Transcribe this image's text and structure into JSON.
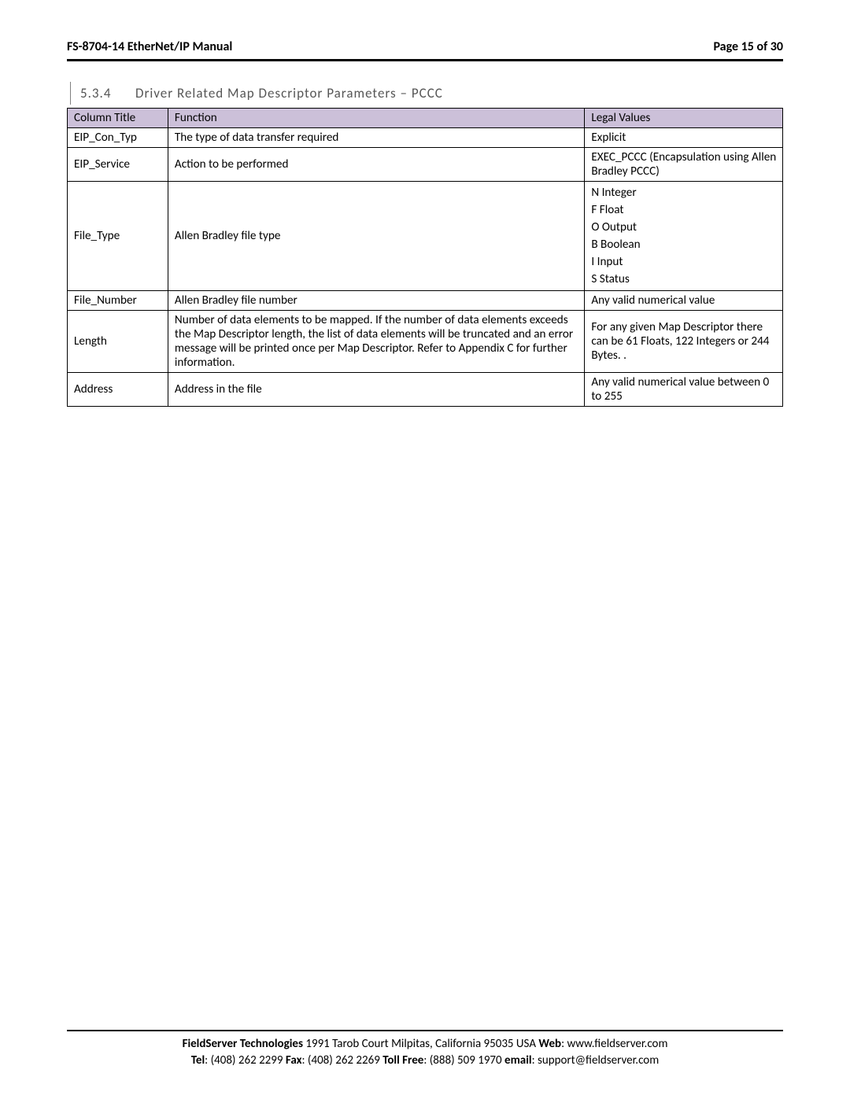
{
  "header": {
    "doc_title": "FS-8704-14 EtherNet/IP Manual",
    "page_label": "Page 15 of 30"
  },
  "section": {
    "number": "5.3.4",
    "title": "Driver Related Map Descriptor Parameters – PCCC"
  },
  "table": {
    "header_bg": "#ccc0d9",
    "columns": {
      "title": "Column Title",
      "function": "Function",
      "legal": "Legal Values"
    },
    "rows": {
      "eip_con_typ": {
        "title": "EIP_Con_Typ",
        "function": "The type of data transfer required",
        "legal": "Explicit"
      },
      "eip_service": {
        "title": "EIP_Service",
        "function": "Action to be performed",
        "legal": "EXEC_PCCC (Encapsulation using Allen Bradley PCCC)"
      },
      "file_type": {
        "title": "File_Type",
        "function": "Allen Bradley file type",
        "legal_lines": {
          "l1": "N Integer",
          "l2": "F Float",
          "l3": "O Output",
          "l4": "B Boolean",
          "l5": "I Input",
          "l6": "S Status"
        }
      },
      "file_number": {
        "title": "File_Number",
        "function": "Allen Bradley file number",
        "legal": "Any valid numerical value"
      },
      "length": {
        "title": "Length",
        "function": "Number of data elements to be mapped.  If the number of data elements exceeds the Map Descriptor length, the list of data elements will be truncated and an error message will be printed once per Map Descriptor.  Refer to Appendix C for further information.",
        "legal": "For any given Map Descriptor there can be 61 Floats, 122 Integers or 244 Bytes. ."
      },
      "address": {
        "title": "Address",
        "function": "Address in the file",
        "legal": "Any valid numerical value between 0 to 255"
      }
    }
  },
  "footer": {
    "company": "FieldServer Technologies",
    "address": " 1991 Tarob Court Milpitas, California 95035 USA   ",
    "web_label": "Web",
    "web": ": www.fieldserver.com",
    "tel_label": "Tel",
    "tel": ": (408) 262 2299   ",
    "fax_label": "Fax",
    "fax": ": (408) 262 2269   ",
    "tollfree_label": "Toll Free",
    "tollfree": ": (888) 509 1970   ",
    "email_label": "email",
    "email": ": support@fieldserver.com"
  }
}
